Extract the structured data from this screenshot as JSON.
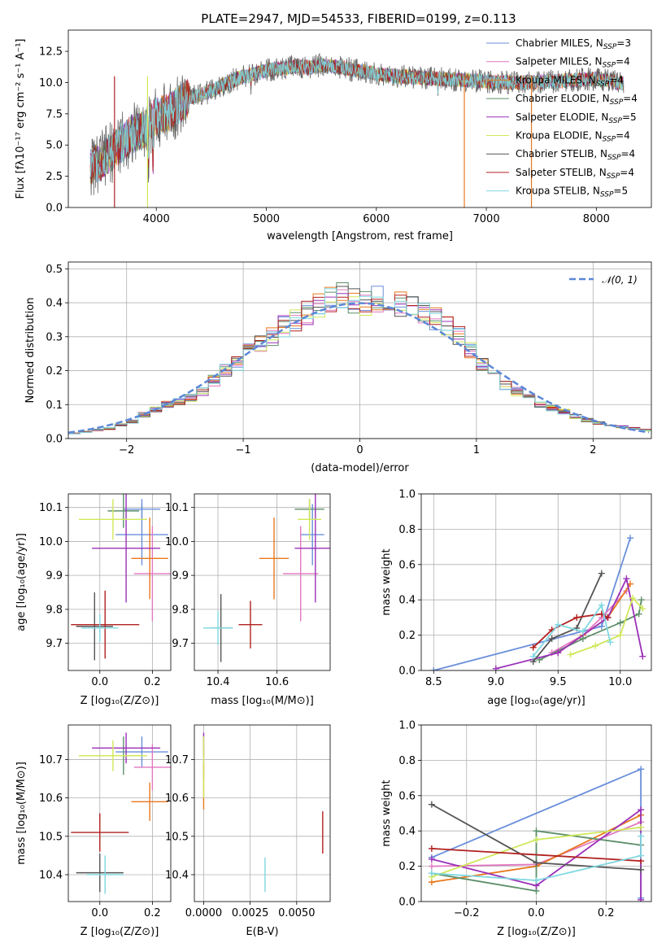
{
  "figure_title": "PLATE=2947, MJD=54533, FIBERID=0199, z=0.113",
  "chart_data": [
    {
      "panel": "spectrum",
      "type": "line",
      "xlabel": "wavelength [Angstrom, rest frame]",
      "ylabel": "Flux [fλ10⁻¹⁷ erg cm⁻² s⁻¹ A⁻¹]",
      "xlim": [
        3200,
        8500
      ],
      "ylim": [
        0,
        14.2
      ],
      "xticks": [
        "4000",
        "5000",
        "6000",
        "7000",
        "8000"
      ],
      "yticks": [
        "0.0",
        "2.5",
        "5.0",
        "7.5",
        "10.0",
        "12.5"
      ],
      "grid": false,
      "legend_position": "top-right",
      "continuum_x": [
        3400,
        3500,
        3600,
        3700,
        3800,
        3900,
        4000,
        4100,
        4200,
        4300,
        4400,
        4500,
        4600,
        4700,
        4800,
        4900,
        5000,
        5100,
        5200,
        5300,
        5400,
        5500,
        5600,
        5700,
        5800,
        5900,
        6000,
        6200,
        6400,
        6600,
        6800,
        7000,
        7200,
        7400,
        7600,
        7800,
        8000,
        8250
      ],
      "continuum_y": [
        3.3,
        3.7,
        4.5,
        5.3,
        6.0,
        6.3,
        7.3,
        7.5,
        8.2,
        8.8,
        9.0,
        9.3,
        9.8,
        10.2,
        10.5,
        10.7,
        11.0,
        11.1,
        11.2,
        11.3,
        11.2,
        11.4,
        11.3,
        11.2,
        11.0,
        10.9,
        10.7,
        10.5,
        10.4,
        10.3,
        10.2,
        10.1,
        10.0,
        10.0,
        10.1,
        10.2,
        10.3,
        9.9
      ],
      "series": [
        {
          "name": "Chabrier MILES, N_SSP=3",
          "color": "#6a8fdb"
        },
        {
          "name": "Salpeter MILES, N_SSP=4",
          "color": "#e377c2"
        },
        {
          "name": "Kroupa MILES, N_SSP=4",
          "color": "#e8781e"
        },
        {
          "name": "Chabrier ELODIE, N_SSP=4",
          "color": "#5e8f6a"
        },
        {
          "name": "Salpeter ELODIE, N_SSP=5",
          "color": "#9b30b8"
        },
        {
          "name": "Kroupa ELODIE, N_SSP=4",
          "color": "#cfe85a"
        },
        {
          "name": "Chabrier STELIB, N_SSP=4",
          "color": "#555555"
        },
        {
          "name": "Salpeter STELIB, N_SSP=4",
          "color": "#b22020"
        },
        {
          "name": "Kroupa STELIB, N_SSP=5",
          "color": "#7fd8e0"
        }
      ],
      "legend": [
        {
          "pre": "Chabrier MILES, N",
          "sub": "SSP",
          "post": "=3"
        },
        {
          "pre": "Salpeter MILES, N",
          "sub": "SSP",
          "post": "=4"
        },
        {
          "pre": "Kroupa MILES, N",
          "sub": "SSP",
          "post": "=4"
        },
        {
          "pre": "Chabrier ELODIE, N",
          "sub": "SSP",
          "post": "=4"
        },
        {
          "pre": "Salpeter ELODIE, N",
          "sub": "SSP",
          "post": "=5"
        },
        {
          "pre": "Kroupa ELODIE, N",
          "sub": "SSP",
          "post": "=4"
        },
        {
          "pre": "Chabrier STELIB, N",
          "sub": "SSP",
          "post": "=4"
        },
        {
          "pre": "Salpeter STELIB, N",
          "sub": "SSP",
          "post": "=4"
        },
        {
          "pre": "Kroupa STELIB, N",
          "sub": "SSP",
          "post": "=5"
        }
      ]
    },
    {
      "panel": "residuals",
      "type": "line",
      "xlabel": "(data-model)/error",
      "ylabel": "Normed distribution",
      "xlim": [
        -2.5,
        2.5
      ],
      "ylim": [
        0,
        0.52
      ],
      "xticks": [
        "−2",
        "−1",
        "0",
        "1",
        "2"
      ],
      "yticks": [
        "0.0",
        "0.1",
        "0.2",
        "0.3",
        "0.4",
        "0.5"
      ],
      "grid": true,
      "legend": "𝒩(0, 1)",
      "legend_position": "top-right",
      "bin_width": 0.1,
      "hist_x": [
        -2.45,
        -2.35,
        -2.25,
        -2.15,
        -2.05,
        -1.95,
        -1.85,
        -1.75,
        -1.65,
        -1.55,
        -1.45,
        -1.35,
        -1.25,
        -1.15,
        -1.05,
        -0.95,
        -0.85,
        -0.75,
        -0.65,
        -0.55,
        -0.45,
        -0.35,
        -0.25,
        -0.15,
        -0.05,
        0.05,
        0.15,
        0.25,
        0.35,
        0.45,
        0.55,
        0.65,
        0.75,
        0.85,
        0.95,
        1.05,
        1.15,
        1.25,
        1.35,
        1.45,
        1.55,
        1.65,
        1.75,
        1.85,
        1.95,
        2.05,
        2.15,
        2.25,
        2.35,
        2.45
      ],
      "hist_y": [
        0.015,
        0.02,
        0.025,
        0.03,
        0.04,
        0.05,
        0.07,
        0.085,
        0.1,
        0.11,
        0.12,
        0.14,
        0.17,
        0.2,
        0.22,
        0.26,
        0.28,
        0.3,
        0.33,
        0.35,
        0.37,
        0.39,
        0.41,
        0.42,
        0.41,
        0.4,
        0.41,
        0.41,
        0.4,
        0.39,
        0.37,
        0.35,
        0.33,
        0.3,
        0.26,
        0.22,
        0.19,
        0.16,
        0.14,
        0.12,
        0.1,
        0.09,
        0.08,
        0.065,
        0.055,
        0.045,
        0.04,
        0.035,
        0.03,
        0.025
      ],
      "gaussian": {
        "mean": 0,
        "sigma": 1,
        "color": "#5b87d6"
      }
    },
    {
      "panel": "age_vs_Z",
      "type": "scatter",
      "xlabel": "Z [log₁₀(Z/Z⊙)]",
      "ylabel": "age  [log₁₀(age/yr)]",
      "xlim": [
        -0.12,
        0.27
      ],
      "ylim": [
        9.62,
        10.14
      ],
      "xticks": [
        "0.0",
        "0.2"
      ],
      "xtick_values": [
        0.0,
        0.2
      ],
      "yticks": [
        "9.7",
        "9.8",
        "9.9",
        "10.0",
        "10.1"
      ],
      "ytick_values": [
        9.7,
        9.8,
        9.9,
        10.0,
        10.1
      ],
      "grid": true,
      "points": [
        {
          "x": 0.16,
          "xerr": 0.07,
          "y": 10.095,
          "yerr": 0.03,
          "color": "#6a8fdb"
        },
        {
          "x": 0.16,
          "xerr": 0.1,
          "y": 10.02,
          "yerr": 0.09,
          "color": "#6a8fdb"
        },
        {
          "x": 0.2,
          "xerr": 0.07,
          "y": 9.905,
          "yerr": 0.14,
          "color": "#e377c2"
        },
        {
          "x": 0.19,
          "xerr": 0.07,
          "y": 9.95,
          "yerr": 0.12,
          "color": "#e8781e"
        },
        {
          "x": 0.09,
          "xerr": 0.06,
          "y": 10.09,
          "yerr": 0.05,
          "color": "#5e8f6a"
        },
        {
          "x": 0.1,
          "xerr": 0.13,
          "y": 9.98,
          "yerr": 0.16,
          "color": "#9b30b8"
        },
        {
          "x": 0.05,
          "xerr": 0.13,
          "y": 10.065,
          "yerr": 0.06,
          "color": "#cfe85a"
        },
        {
          "x": -0.02,
          "xerr": 0.07,
          "y": 9.75,
          "yerr": 0.1,
          "color": "#555555"
        },
        {
          "x": 0.02,
          "xerr": 0.13,
          "y": 9.755,
          "yerr": 0.1,
          "color": "#b22020"
        },
        {
          "x": 0.0,
          "xerr": 0.07,
          "y": 9.745,
          "yerr": 0.04,
          "color": "#7fd8e0"
        }
      ]
    },
    {
      "panel": "age_vs_mass",
      "type": "scatter",
      "xlabel": "mass [log₁₀(M/M⊙)]",
      "xlim": [
        10.32,
        10.78
      ],
      "ylim": [
        9.62,
        10.14
      ],
      "xticks": [
        "10.4",
        "10.6"
      ],
      "xtick_values": [
        10.4,
        10.6
      ],
      "yticks": [
        "9.7",
        "9.8",
        "9.9",
        "10.0",
        "10.1"
      ],
      "ytick_values": [
        9.7,
        9.8,
        9.9,
        10.0,
        10.1
      ],
      "grid": true,
      "points": [
        {
          "x": 10.72,
          "xerr": 0.04,
          "y": 10.02,
          "yerr": 0.09,
          "color": "#6a8fdb"
        },
        {
          "x": 10.68,
          "xerr": 0.06,
          "y": 9.905,
          "yerr": 0.14,
          "color": "#e377c2"
        },
        {
          "x": 10.59,
          "xerr": 0.05,
          "y": 9.95,
          "yerr": 0.12,
          "color": "#e8781e"
        },
        {
          "x": 10.71,
          "xerr": 0.05,
          "y": 10.095,
          "yerr": 0.03,
          "color": "#5e8f6a"
        },
        {
          "x": 10.73,
          "xerr": 0.07,
          "y": 9.98,
          "yerr": 0.16,
          "color": "#9b30b8"
        },
        {
          "x": 10.71,
          "xerr": 0.04,
          "y": 10.065,
          "yerr": 0.06,
          "color": "#cfe85a"
        },
        {
          "x": 10.41,
          "xerr": 0.04,
          "y": 9.745,
          "yerr": 0.1,
          "color": "#555555"
        },
        {
          "x": 10.51,
          "xerr": 0.04,
          "y": 9.755,
          "yerr": 0.07,
          "color": "#b22020"
        },
        {
          "x": 10.4,
          "xerr": 0.05,
          "y": 9.745,
          "yerr": 0.05,
          "color": "#7fd8e0"
        }
      ]
    },
    {
      "panel": "mass_weight_vs_age",
      "type": "line",
      "xlabel": "age  [log₁₀(age/yr)]",
      "ylabel": "mass weight",
      "xlim": [
        8.4,
        10.25
      ],
      "ylim": [
        0,
        1
      ],
      "xticks": [
        "8.5",
        "9.0",
        "9.5",
        "10.0"
      ],
      "xtick_values": [
        8.5,
        9.0,
        9.5,
        10.0
      ],
      "yticks": [
        "0.0",
        "0.2",
        "0.4",
        "0.6",
        "0.8",
        "1.0"
      ],
      "ytick_values": [
        0,
        0.2,
        0.4,
        0.6,
        0.8,
        1.0
      ],
      "grid": true,
      "series": [
        {
          "color": "#6a8fdb",
          "x": [
            8.5,
            9.85,
            10.08
          ],
          "y": [
            0.0,
            0.25,
            0.75
          ]
        },
        {
          "color": "#e377c2",
          "x": [
            9.45,
            9.7,
            9.85,
            10.05
          ],
          "y": [
            0.1,
            0.2,
            0.3,
            0.45
          ]
        },
        {
          "color": "#e8781e",
          "x": [
            9.5,
            9.7,
            9.9,
            10.08
          ],
          "y": [
            0.1,
            0.2,
            0.3,
            0.49
          ]
        },
        {
          "color": "#5e8f6a",
          "x": [
            9.35,
            9.7,
            10.0,
            10.15,
            10.17
          ],
          "y": [
            0.06,
            0.18,
            0.27,
            0.32,
            0.4
          ]
        },
        {
          "color": "#9b30b8",
          "x": [
            9.0,
            9.5,
            9.9,
            10.05,
            10.18
          ],
          "y": [
            0.01,
            0.1,
            0.3,
            0.52,
            0.08
          ]
        },
        {
          "color": "#cfe85a",
          "x": [
            9.6,
            9.8,
            10.0,
            10.1,
            10.18
          ],
          "y": [
            0.09,
            0.14,
            0.2,
            0.41,
            0.35
          ]
        },
        {
          "color": "#555555",
          "x": [
            9.3,
            9.45,
            9.65,
            9.85
          ],
          "y": [
            0.05,
            0.18,
            0.24,
            0.55
          ]
        },
        {
          "color": "#b22020",
          "x": [
            9.3,
            9.45,
            9.65,
            9.85,
            9.9
          ],
          "y": [
            0.13,
            0.23,
            0.3,
            0.32,
            0.3
          ]
        },
        {
          "color": "#7fd8e0",
          "x": [
            9.3,
            9.5,
            9.7,
            9.85,
            9.92
          ],
          "y": [
            0.08,
            0.26,
            0.22,
            0.37,
            0.16
          ]
        }
      ]
    },
    {
      "panel": "mass_vs_Z",
      "type": "scatter",
      "xlabel": "Z [log₁₀(Z/Z⊙)]",
      "ylabel": "mass [log₁₀(M/M⊙)]",
      "xlim": [
        -0.12,
        0.27
      ],
      "ylim": [
        10.33,
        10.79
      ],
      "xticks": [
        "0.0",
        "0.2"
      ],
      "xtick_values": [
        0.0,
        0.2
      ],
      "yticks": [
        "10.4",
        "10.5",
        "10.6",
        "10.7"
      ],
      "ytick_values": [
        10.4,
        10.5,
        10.6,
        10.7
      ],
      "grid": true,
      "points": [
        {
          "x": 0.16,
          "xerr": 0.1,
          "y": 10.72,
          "yerr": 0.04,
          "color": "#6a8fdb"
        },
        {
          "x": 0.2,
          "xerr": 0.07,
          "y": 10.68,
          "yerr": 0.06,
          "color": "#e377c2"
        },
        {
          "x": 0.19,
          "xerr": 0.07,
          "y": 10.59,
          "yerr": 0.05,
          "color": "#e8781e"
        },
        {
          "x": 0.09,
          "xerr": 0.06,
          "y": 10.71,
          "yerr": 0.05,
          "color": "#5e8f6a"
        },
        {
          "x": 0.1,
          "xerr": 0.13,
          "y": 10.73,
          "yerr": 0.04,
          "color": "#9b30b8"
        },
        {
          "x": 0.05,
          "xerr": 0.13,
          "y": 10.71,
          "yerr": 0.04,
          "color": "#cfe85a"
        },
        {
          "x": 0.0,
          "xerr": 0.09,
          "y": 10.405,
          "yerr": 0.05,
          "color": "#555555"
        },
        {
          "x": 0.0,
          "xerr": 0.11,
          "y": 10.51,
          "yerr": 0.05,
          "color": "#b22020"
        },
        {
          "x": 0.02,
          "xerr": 0.07,
          "y": 10.4,
          "yerr": 0.05,
          "color": "#7fd8e0"
        }
      ]
    },
    {
      "panel": "mass_vs_EBV",
      "type": "scatter",
      "xlabel": "E(B-V)",
      "xlim": [
        -0.0005,
        0.0068
      ],
      "ylim": [
        10.33,
        10.79
      ],
      "xticks": [
        "0.0000",
        "0.0025",
        "0.0050"
      ],
      "xtick_values": [
        0.0,
        0.0025,
        0.005
      ],
      "yticks": [
        "10.4",
        "10.5",
        "10.6",
        "10.7"
      ],
      "ytick_values": [
        10.4,
        10.5,
        10.6,
        10.7
      ],
      "grid": true,
      "points": [
        {
          "x": 0.0,
          "y": 10.74,
          "yerr": 0.03,
          "color": "#9b30b8"
        },
        {
          "x": 0.0,
          "y": 10.7,
          "yerr": 0.05,
          "color": "#e377c2"
        },
        {
          "x": 0.0,
          "y": 10.63,
          "yerr": 0.06,
          "color": "#e8781e"
        },
        {
          "x": 0.0,
          "y": 10.68,
          "yerr": 0.08,
          "color": "#cfe85a"
        },
        {
          "x": 0.0033,
          "y": 10.4,
          "yerr": 0.045,
          "color": "#7fd8e0"
        },
        {
          "x": 0.0064,
          "y": 10.51,
          "yerr": 0.055,
          "color": "#b22020"
        }
      ]
    },
    {
      "panel": "mass_weight_vs_Z",
      "type": "line",
      "xlabel": "Z [log₁₀(Z/Z⊙)]",
      "ylabel": "mass weight",
      "xlim": [
        -0.33,
        0.33
      ],
      "ylim": [
        0,
        1
      ],
      "xticks": [
        "−0.2",
        "0.0",
        "0.2"
      ],
      "xtick_values": [
        -0.2,
        0.0,
        0.2
      ],
      "yticks": [
        "0.0",
        "0.2",
        "0.4",
        "0.6",
        "0.8",
        "1.0"
      ],
      "ytick_values": [
        0,
        0.2,
        0.4,
        0.6,
        0.8,
        1.0
      ],
      "grid": true,
      "series": [
        {
          "color": "#6a8fdb",
          "x": [
            -0.3,
            0.3,
            0.3
          ],
          "y": [
            0.25,
            0.75,
            0.02
          ]
        },
        {
          "color": "#e377c2",
          "x": [
            -0.3,
            0.0,
            0.3
          ],
          "y": [
            0.2,
            0.21,
            0.45
          ]
        },
        {
          "color": "#e8781e",
          "x": [
            -0.3,
            0.0,
            0.3
          ],
          "y": [
            0.11,
            0.2,
            0.49
          ]
        },
        {
          "color": "#5e8f6a",
          "x": [
            -0.3,
            0.0,
            0.0,
            0.3
          ],
          "y": [
            0.16,
            0.06,
            0.4,
            0.32
          ]
        },
        {
          "color": "#9b30b8",
          "x": [
            -0.3,
            0.0,
            0.3,
            0.3
          ],
          "y": [
            0.24,
            0.09,
            0.52,
            0.01
          ]
        },
        {
          "color": "#cfe85a",
          "x": [
            -0.3,
            0.0,
            0.3
          ],
          "y": [
            0.14,
            0.35,
            0.42
          ]
        },
        {
          "color": "#555555",
          "x": [
            -0.3,
            0.0,
            0.3
          ],
          "y": [
            0.55,
            0.22,
            0.18
          ]
        },
        {
          "color": "#b22020",
          "x": [
            -0.3,
            0.3
          ],
          "y": [
            0.3,
            0.23
          ]
        },
        {
          "color": "#7fd8e0",
          "x": [
            -0.3,
            0.0,
            0.3,
            0.3
          ],
          "y": [
            0.16,
            0.12,
            0.26,
            0.37
          ]
        }
      ]
    }
  ]
}
